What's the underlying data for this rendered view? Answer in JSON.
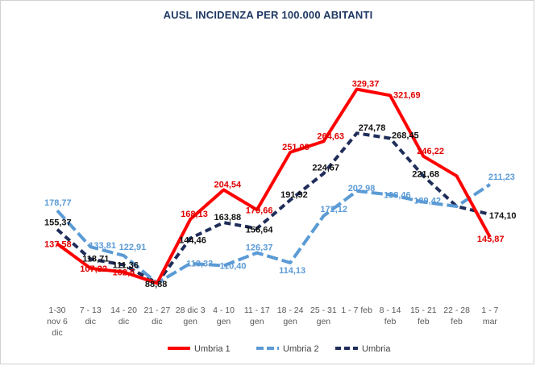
{
  "chart_data": {
    "type": "line",
    "title": "AUSL INCIDENZA PER 100.000 ABITANTI",
    "categories": [
      [
        "1-30",
        "nov 6",
        "dic"
      ],
      [
        "7 - 13",
        "dic"
      ],
      [
        "14 - 20",
        "dic"
      ],
      [
        "21 - 27",
        "dic"
      ],
      [
        "28 dic 3",
        "gen"
      ],
      [
        "4 - 10",
        "gen"
      ],
      [
        "11 - 17",
        "gen"
      ],
      [
        "18 - 24",
        "gen"
      ],
      [
        "25 - 31",
        "gen"
      ],
      [
        "1 - 7 feb"
      ],
      [
        "8 - 14",
        "feb"
      ],
      [
        "15 - 21",
        "feb"
      ],
      [
        "22 - 28",
        "feb"
      ],
      [
        "1 - 7",
        "mar"
      ]
    ],
    "series": [
      {
        "name": "Umbria 1",
        "color": "#ff0000",
        "dash": "solid",
        "values": [
          137.58,
          107.22,
          102.5,
          88.83,
          168.13,
          204.54,
          179.66,
          251.08,
          264.63,
          329.37,
          321.69,
          246.22,
          221.68,
          145.87
        ],
        "labels": [
          "137,58",
          "107,22",
          "102,5",
          "",
          "168,13",
          "204,54",
          "179,66",
          "251,08",
          "264,63",
          "329,37",
          "321,69",
          "246,22",
          "",
          "145,87"
        ]
      },
      {
        "name": "Umbria 2",
        "color": "#5b9bd5",
        "dash": "long",
        "values": [
          178.77,
          133.81,
          122.91,
          88.93,
          113.33,
          110.4,
          126.37,
          114.13,
          172.12,
          202.98,
          198.46,
          189.42,
          184.0,
          211.23
        ],
        "labels": [
          "178,77",
          "133,81",
          "122,91",
          "",
          "113,33",
          "110,40",
          "126,37",
          "114,13",
          "172,12",
          "202,98",
          "198,46",
          "189,42",
          "",
          "211,23"
        ]
      },
      {
        "name": "Umbria",
        "color": "#1f2d5a",
        "dash": "short",
        "values": [
          155.37,
          118.71,
          111.36,
          88.88,
          144.46,
          163.88,
          156.64,
          191.92,
          224.67,
          274.78,
          268.45,
          221.68,
          184.0,
          174.1
        ],
        "labels": [
          "155,37",
          "118,71",
          "111,36",
          "88,88",
          "144,46",
          "163,88",
          "156,64",
          "191,92",
          "224,67",
          "274,78",
          "268,45",
          "221,68",
          "",
          "174,10"
        ]
      }
    ],
    "ylim": [
      0,
      400
    ],
    "grid": false,
    "legend": "bottom"
  }
}
